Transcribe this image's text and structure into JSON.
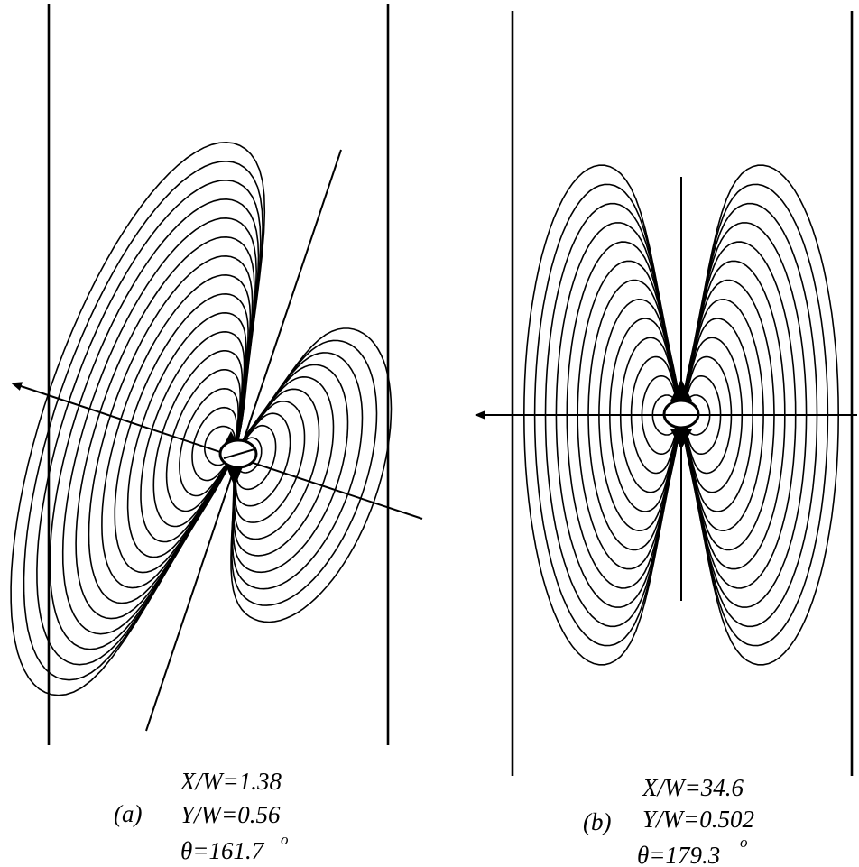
{
  "panels": [
    {
      "id": "a",
      "label": "(a)",
      "xw": "X/W=1.38",
      "yw": "Y/W=0.56",
      "theta": "θ=161.7",
      "theta_sup": "o"
    },
    {
      "id": "b",
      "label": "(b)",
      "xw": "X/W=34.6",
      "yw": "Y/W=0.502",
      "theta": "θ=179.3",
      "theta_sup": "o"
    }
  ]
}
